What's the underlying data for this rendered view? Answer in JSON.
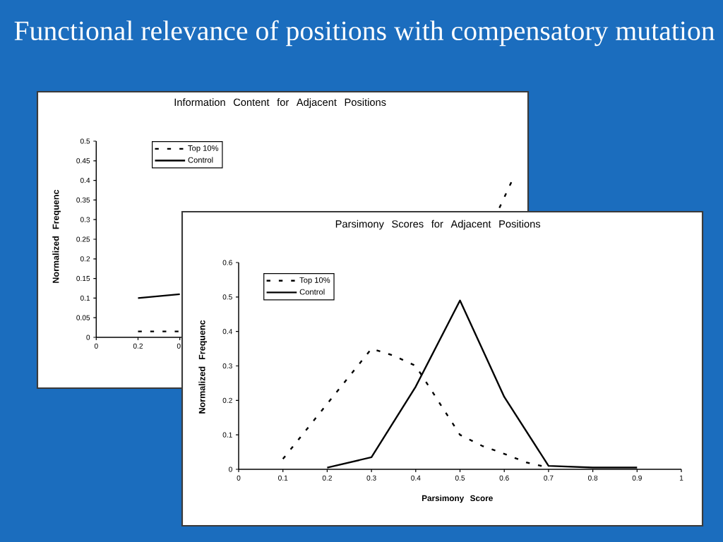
{
  "chart_data": [
    {
      "type": "line",
      "title": "Information Content for Adjacent Positions",
      "ylabel": "Normalized Frequenc",
      "annotations": [
        "Functional relevance of positions with compensatory mutation"
      ],
      "xlim": [
        0,
        2
      ],
      "ylim": [
        0,
        0.5
      ],
      "xticks": [
        0,
        0.2,
        {
          "value": 0.4,
          "label": "0."
        }
      ],
      "yticks": [
        0,
        0.05,
        0.1,
        0.15,
        0.2,
        0.25,
        0.3,
        0.35,
        0.4,
        0.45,
        0.5
      ],
      "legend": "top left",
      "series": [
        {
          "name": "Top 10%",
          "color": "#000000",
          "line_style": "dashed",
          "x": [
            0.2,
            0.3,
            0.4,
            1,
            1.93,
            2
          ],
          "values": [
            0.015,
            0.015,
            0.015,
            null,
            0.33,
            0.41
          ]
        },
        {
          "name": "Control",
          "color": "#000000",
          "line_style": "solid",
          "x": [
            0.2,
            0.3,
            0.4
          ],
          "values": [
            0.1,
            0.105,
            0.11
          ]
        }
      ]
    },
    {
      "type": "line",
      "title": "Parsimony Scores for Adjacent Positions",
      "xlabel": "Parsimony Score",
      "ylabel": "Normalized Frequenc",
      "xlim": [
        0,
        1
      ],
      "ylim": [
        0,
        0.6
      ],
      "xticks": [
        0,
        0.1,
        0.2,
        0.3,
        0.4,
        0.5,
        0.6,
        0.7,
        0.8,
        0.9,
        1
      ],
      "yticks": [
        0,
        0.1,
        0.2,
        0.3,
        0.4,
        0.5,
        0.6
      ],
      "legend": "top left",
      "series": [
        {
          "name": "Top 10%",
          "color": "#000000",
          "line_style": "dashed",
          "x": [
            0.1,
            0.2,
            0.3,
            0.35,
            0.4,
            0.5,
            0.55,
            0.6,
            0.65,
            0.7
          ],
          "values": [
            0.03,
            0.19,
            0.35,
            0.33,
            0.3,
            0.1,
            0.068,
            0.045,
            0.02,
            0.005
          ]
        },
        {
          "name": "Control",
          "color": "#000000",
          "line_style": "solid",
          "x": [
            0.2,
            0.3,
            0.4,
            0.5,
            0.6,
            0.7,
            0.8,
            0.9
          ],
          "values": [
            0.005,
            0.035,
            0.24,
            0.49,
            0.21,
            0.01,
            0.005,
            0.005
          ]
        }
      ]
    }
  ]
}
